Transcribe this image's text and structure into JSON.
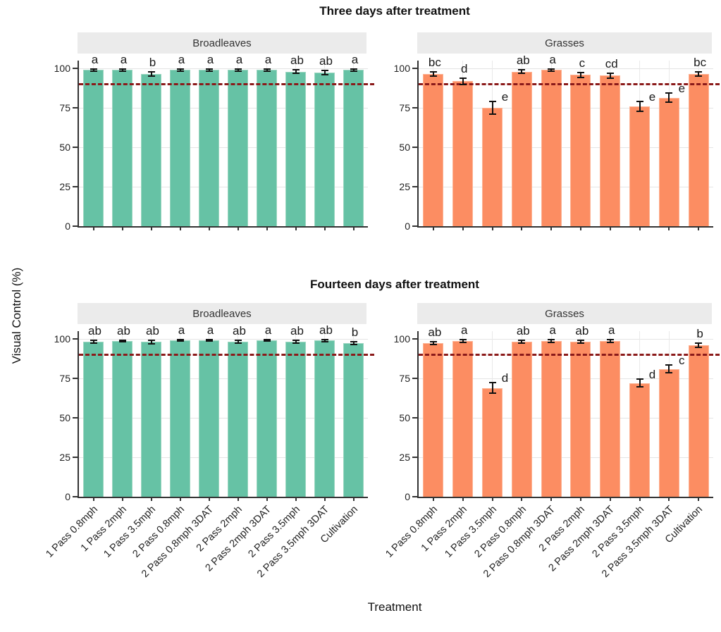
{
  "chart_data": {
    "type": "bar",
    "title_top": "Three days after treatment",
    "title_bottom": "Fourteen days after treatment",
    "ylabel": "Visual Control (%)",
    "xlabel": "Treatment",
    "y_ticks": [
      0,
      25,
      50,
      75,
      100
    ],
    "ylim": [
      0,
      105
    ],
    "grid": true,
    "reference_line": {
      "value": 90,
      "style": "dashed",
      "color": "#8B1A1A"
    },
    "bar_colors": {
      "Broadleaves": "#66C2A5",
      "Grasses": "#FC8D62"
    },
    "row_facets": [
      "Three days after treatment",
      "Fourteen days after treatment"
    ],
    "col_facets": [
      "Broadleaves",
      "Grasses"
    ],
    "categories": [
      "1 Pass 0.8mph",
      "1 Pass 2mph",
      "1 Pass 3.5mph",
      "2 Pass 0.8mph",
      "2 Pass 0.8mph 3DAT",
      "2 Pass 2mph",
      "2 Pass 2mph 3DAT",
      "2 Pass 3.5mph",
      "2 Pass 3.5mph 3DAT",
      "Cultivation"
    ],
    "panels": [
      {
        "row": "Three days after treatment",
        "col": "Broadleaves",
        "color": "#66C2A5",
        "edge": "#9bd6c0",
        "values": [
          99,
          99,
          96.5,
          99,
          99,
          99,
          99,
          98,
          97.5,
          99
        ],
        "errors": [
          0.7,
          0.7,
          1.5,
          0.7,
          0.7,
          0.7,
          0.7,
          1.2,
          1.3,
          0.7
        ],
        "letters": [
          "a",
          "a",
          "b",
          "a",
          "a",
          "a",
          "a",
          "ab",
          "ab",
          "a"
        ]
      },
      {
        "row": "Three days after treatment",
        "col": "Grasses",
        "color": "#FC8D62",
        "edge": "#fdb394",
        "values": [
          96.5,
          92,
          75,
          98,
          99,
          96,
          95.5,
          76,
          81.5,
          96.5
        ],
        "errors": [
          1.5,
          2,
          4,
          1.2,
          0.8,
          1.5,
          1.5,
          3.2,
          3,
          1.3
        ],
        "letters": [
          "bc",
          "d",
          "e",
          "ab",
          "a",
          "c",
          "cd",
          "e",
          "e",
          "bc"
        ]
      },
      {
        "row": "Fourteen days after treatment",
        "col": "Broadleaves",
        "color": "#66C2A5",
        "edge": "#9bd6c0",
        "values": [
          98.3,
          98.8,
          98.1,
          99.1,
          99.1,
          98.4,
          99.1,
          98.4,
          99,
          97.3
        ],
        "errors": [
          0.8,
          0.6,
          1,
          0.5,
          0.5,
          0.8,
          0.5,
          0.8,
          0.8,
          1
        ],
        "letters": [
          "ab",
          "ab",
          "ab",
          "a",
          "a",
          "ab",
          "a",
          "ab",
          "ab",
          "b"
        ]
      },
      {
        "row": "Fourteen days after treatment",
        "col": "Grasses",
        "color": "#FC8D62",
        "edge": "#fdb394",
        "values": [
          97.3,
          98.8,
          69,
          98.2,
          98.8,
          98.2,
          98.7,
          72,
          81,
          96
        ],
        "errors": [
          1,
          0.8,
          3.5,
          1,
          0.8,
          1,
          0.8,
          2.5,
          2.5,
          1.3
        ],
        "letters": [
          "ab",
          "a",
          "d",
          "ab",
          "a",
          "ab",
          "a",
          "d",
          "c",
          "b"
        ]
      }
    ]
  }
}
